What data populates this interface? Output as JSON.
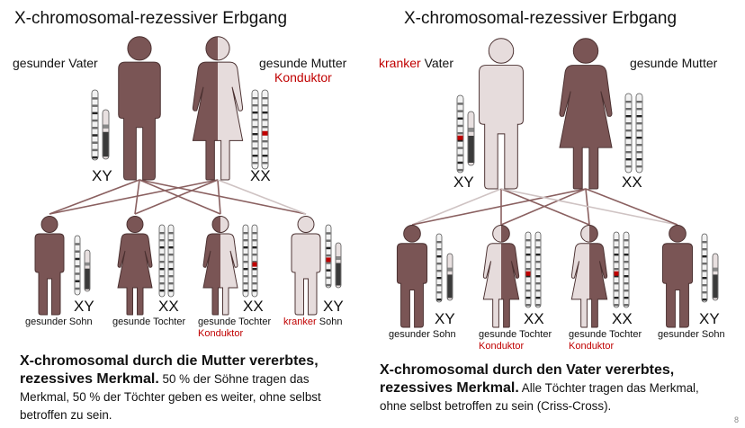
{
  "left": {
    "title": "X-chromosomal-rezessiver Erbgang",
    "father_label": "gesunder Vater",
    "mother_label": "gesunde Mutter",
    "mother_sublabel": "Konduktor",
    "father_genotype": "XY",
    "mother_genotype": "XX",
    "children": [
      {
        "label": "gesunder Sohn",
        "genotype": "XY",
        "sublabel": ""
      },
      {
        "label": "gesunde Tochter",
        "genotype": "XX",
        "sublabel": ""
      },
      {
        "label": "gesunde Tochter",
        "genotype": "XX",
        "sublabel": "Konduktor"
      },
      {
        "label_red": "kranker",
        "label": "Sohn",
        "genotype": "XY",
        "sublabel": ""
      }
    ],
    "caption_bold": "X-chromosomal durch die Mutter vererbtes, rezessives Merkmal.",
    "caption_text": " 50 % der Söhne tragen das Merkmal, 50 % der Töchter geben es weiter, ohne selbst betroffen zu sein."
  },
  "right": {
    "title": "X-chromosomal-rezessiver Erbgang",
    "father_label_red": "kranker",
    "father_label": "Vater",
    "mother_label": "gesunde Mutter",
    "father_genotype": "XY",
    "mother_genotype": "XX",
    "children": [
      {
        "label": "gesunder Sohn",
        "genotype": "XY",
        "sublabel": ""
      },
      {
        "label": "gesunde Tochter",
        "genotype": "XX",
        "sublabel": "Konduktor"
      },
      {
        "label": "gesunde Tochter",
        "genotype": "XX",
        "sublabel": "Konduktor"
      },
      {
        "label": "gesunder Sohn",
        "genotype": "XY",
        "sublabel": ""
      }
    ],
    "caption_bold": "X-chromosomal durch den Vater vererbtes, rezessives Merkmal.",
    "caption_text": " Alle Töchter tragen das Merkmal, ohne selbst betroffen zu sein (Criss-Cross)."
  },
  "page_number": "8",
  "colors": {
    "healthy": "#7a5555",
    "affected": "#e6dcdc",
    "outline": "#4a3030",
    "red_label": "#c00000",
    "line": "#8a6060",
    "line_light": "#cfc3c3"
  }
}
